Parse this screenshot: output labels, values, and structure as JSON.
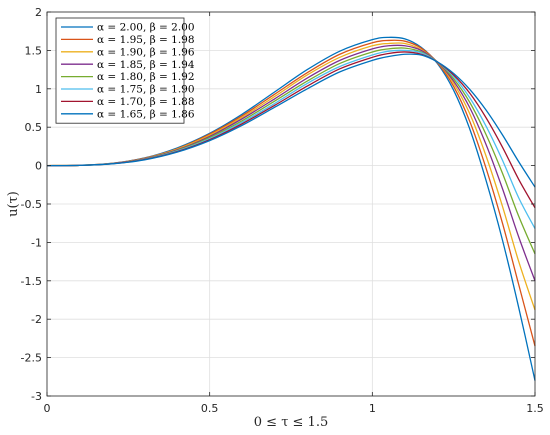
{
  "chart_data": {
    "type": "line",
    "xlabel": "0 ≤ τ ≤ 1.5",
    "ylabel": "u(τ)",
    "xlim": [
      0,
      1.5
    ],
    "ylim": [
      -3,
      2
    ],
    "xticks": [
      0,
      0.5,
      1,
      1.5
    ],
    "xtick_labels": [
      "0",
      "0.5",
      "1",
      "1.5"
    ],
    "yticks": [
      2,
      1.5,
      1,
      0.5,
      0,
      -0.5,
      -1,
      -1.5,
      -2,
      -2.5,
      -3
    ],
    "ytick_labels": [
      "2",
      "1.5",
      "1",
      "0.5",
      "0",
      "-0.5",
      "-1",
      "-1.5",
      "-2",
      "-2.5",
      "-3"
    ],
    "grid": true,
    "legend_position": "top-left",
    "x": [
      0,
      0.1,
      0.2,
      0.3,
      0.4,
      0.5,
      0.6,
      0.7,
      0.8,
      0.9,
      1.0,
      1.05,
      1.1,
      1.15,
      1.2,
      1.25,
      1.3,
      1.35,
      1.4,
      1.45,
      1.5
    ],
    "series": [
      {
        "name": "α = 2.00, β = 2.00",
        "color": "#0072BD",
        "values": [
          0,
          0.004,
          0.03,
          0.1,
          0.23,
          0.42,
          0.67,
          0.96,
          1.25,
          1.49,
          1.64,
          1.67,
          1.65,
          1.54,
          1.33,
          0.98,
          0.47,
          -0.2,
          -0.97,
          -1.85,
          -2.8
        ]
      },
      {
        "name": "α = 1.95, β = 1.98",
        "color": "#D95319",
        "values": [
          0,
          0.004,
          0.029,
          0.097,
          0.22,
          0.41,
          0.65,
          0.93,
          1.21,
          1.45,
          1.6,
          1.63,
          1.62,
          1.53,
          1.34,
          1.03,
          0.57,
          -0.04,
          -0.75,
          -1.55,
          -2.35
        ]
      },
      {
        "name": "α = 1.90, β = 1.96",
        "color": "#EDB120",
        "values": [
          0,
          0.004,
          0.028,
          0.094,
          0.215,
          0.395,
          0.63,
          0.9,
          1.18,
          1.41,
          1.56,
          1.59,
          1.59,
          1.51,
          1.35,
          1.07,
          0.67,
          0.12,
          -0.53,
          -1.25,
          -1.88
        ]
      },
      {
        "name": "α = 1.85, β = 1.94",
        "color": "#7E2F8E",
        "values": [
          0,
          0.003,
          0.027,
          0.09,
          0.205,
          0.38,
          0.61,
          0.87,
          1.14,
          1.37,
          1.52,
          1.56,
          1.56,
          1.5,
          1.35,
          1.1,
          0.75,
          0.27,
          -0.3,
          -0.93,
          -1.5
        ]
      },
      {
        "name": "α = 1.80, β = 1.92",
        "color": "#77AC30",
        "values": [
          0,
          0.003,
          0.026,
          0.086,
          0.197,
          0.365,
          0.585,
          0.84,
          1.1,
          1.33,
          1.48,
          1.52,
          1.53,
          1.48,
          1.35,
          1.13,
          0.82,
          0.4,
          -0.1,
          -0.66,
          -1.15
        ]
      },
      {
        "name": "α = 1.75, β = 1.90",
        "color": "#4DBEEE",
        "values": [
          0,
          0.003,
          0.025,
          0.082,
          0.19,
          0.35,
          0.565,
          0.81,
          1.07,
          1.29,
          1.44,
          1.49,
          1.5,
          1.47,
          1.35,
          1.16,
          0.88,
          0.51,
          0.07,
          -0.42,
          -0.82
        ]
      },
      {
        "name": "α = 1.70, β = 1.88",
        "color": "#A2142F",
        "values": [
          0,
          0.003,
          0.024,
          0.079,
          0.182,
          0.337,
          0.545,
          0.785,
          1.035,
          1.26,
          1.41,
          1.46,
          1.48,
          1.45,
          1.35,
          1.18,
          0.94,
          0.62,
          0.24,
          -0.18,
          -0.55
        ]
      },
      {
        "name": "α = 1.65, β = 1.86",
        "color": "#0072BD",
        "values": [
          0,
          0.003,
          0.023,
          0.075,
          0.175,
          0.325,
          0.525,
          0.76,
          1.0,
          1.22,
          1.37,
          1.42,
          1.45,
          1.44,
          1.35,
          1.2,
          0.99,
          0.72,
          0.4,
          0.05,
          -0.28
        ]
      }
    ]
  }
}
